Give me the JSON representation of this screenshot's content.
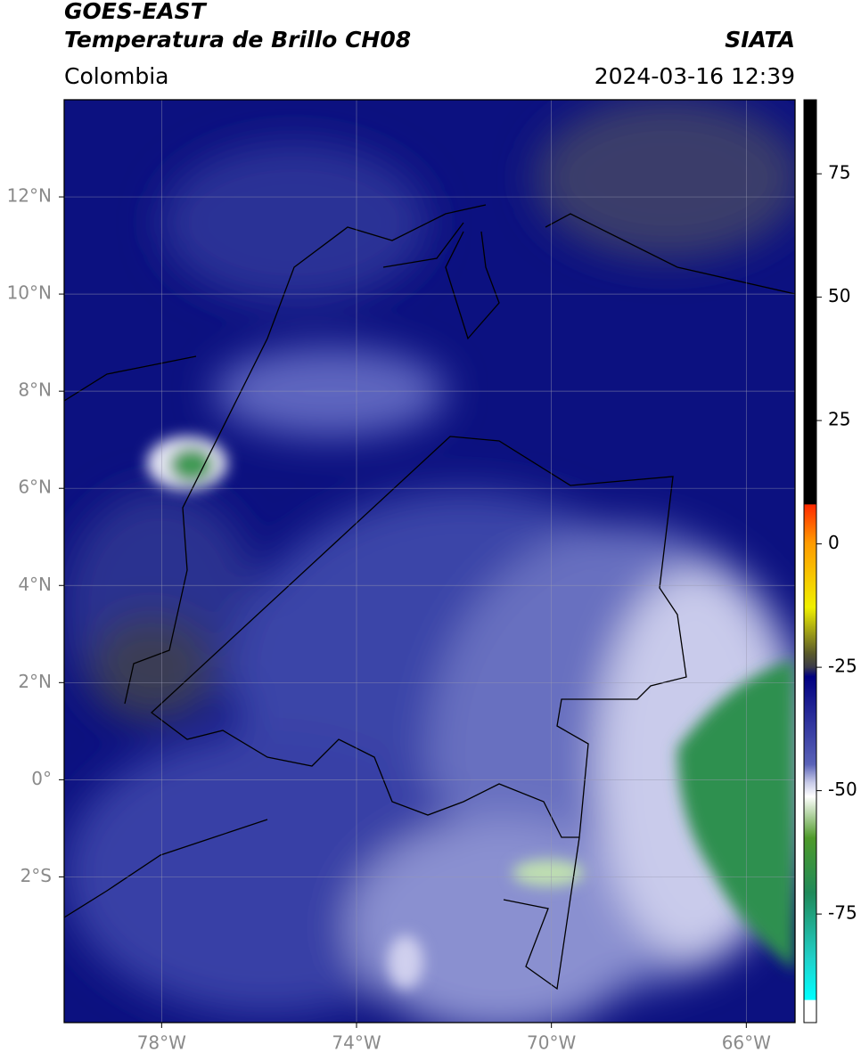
{
  "header": {
    "title": "GOES-EAST",
    "subtitle": "Temperatura de Brillo CH08",
    "source": "SIATA",
    "region": "Colombia",
    "datetime": "2024-03-16 12:39"
  },
  "map": {
    "xlim": [
      -80,
      -65
    ],
    "ylim": [
      -5,
      14
    ],
    "xticks": [
      {
        "value": -78,
        "label": "78°W"
      },
      {
        "value": -74,
        "label": "74°W"
      },
      {
        "value": -70,
        "label": "70°W"
      },
      {
        "value": -66,
        "label": "66°W"
      }
    ],
    "yticks": [
      {
        "value": 12,
        "label": "12°N"
      },
      {
        "value": 10,
        "label": "10°N"
      },
      {
        "value": 8,
        "label": "8°N"
      },
      {
        "value": 6,
        "label": "6°N"
      },
      {
        "value": 4,
        "label": "4°N"
      },
      {
        "value": 2,
        "label": "2°N"
      },
      {
        "value": 0,
        "label": "0°"
      },
      {
        "value": -2,
        "label": "2°S"
      }
    ],
    "grid": true
  },
  "colorbar": {
    "clim": [
      -97,
      90
    ],
    "ticks": [
      75,
      50,
      25,
      0,
      -25,
      -50,
      -75
    ]
  }
}
